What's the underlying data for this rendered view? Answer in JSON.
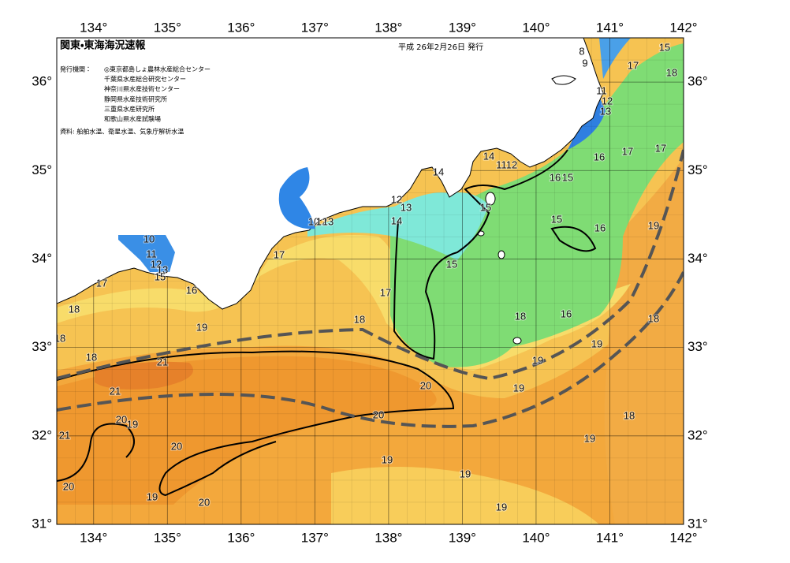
{
  "header": {
    "title": "関東・東海海況速報",
    "issued": "平成 26年2月26日 発行"
  },
  "issuers": {
    "label": "発行機関：",
    "names": [
      "◎東京都島しょ農林水産総合センター",
      "千葉県水産総合研究センター",
      "神奈川県水産技術センター",
      "静岡県水産技術研究所",
      "三重県水産研究所",
      "和歌山県水産試験場"
    ]
  },
  "source": "資料: 船舶水温、衛星水温、気象庁解析水温",
  "map": {
    "lon_range": [
      133.5,
      142
    ],
    "lat_range": [
      31,
      36.5
    ],
    "lon_ticks": [
      {
        "value": 134,
        "label": "134°"
      },
      {
        "value": 135,
        "label": "135°"
      },
      {
        "value": 136,
        "label": "136°"
      },
      {
        "value": 137,
        "label": "137°"
      },
      {
        "value": 138,
        "label": "138°"
      },
      {
        "value": 139,
        "label": "139°"
      },
      {
        "value": 140,
        "label": "140°"
      },
      {
        "value": 141,
        "label": "141°"
      },
      {
        "value": 142,
        "label": "142°"
      }
    ],
    "lat_ticks": [
      {
        "value": 31,
        "label": "31°"
      },
      {
        "value": 32,
        "label": "32°"
      },
      {
        "value": 33,
        "label": "33°"
      },
      {
        "value": 34,
        "label": "34°"
      },
      {
        "value": 35,
        "label": "35°"
      },
      {
        "value": 36,
        "label": "36°"
      }
    ],
    "isotherm_labels": [
      "15",
      "8",
      "9",
      "17",
      "18",
      "11",
      "12",
      "13",
      "16",
      "17",
      "17",
      "14",
      "11",
      "12",
      "14",
      "16",
      "15",
      "12",
      "13",
      "14",
      "15",
      "10",
      "12",
      "13",
      "15",
      "16",
      "19",
      "10",
      "11",
      "12",
      "13",
      "15",
      "17",
      "15",
      "17",
      "16",
      "17",
      "18",
      "18",
      "18",
      "16",
      "18",
      "19",
      "18",
      "19",
      "18",
      "21",
      "19",
      "20",
      "19",
      "21",
      "18",
      "20",
      "20",
      "19",
      "21",
      "19",
      "20",
      "19",
      "19",
      "20",
      "19",
      "20",
      "19"
    ]
  }
}
